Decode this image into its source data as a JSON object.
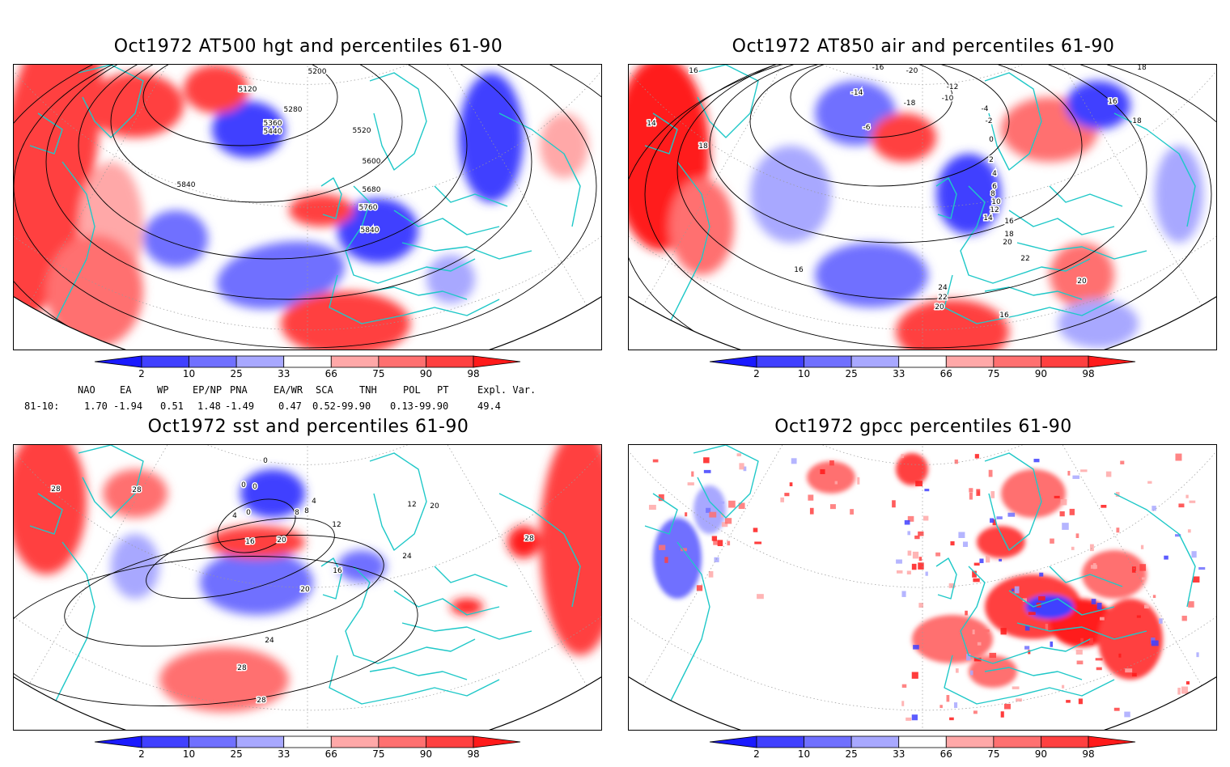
{
  "panels": [
    {
      "title": "Oct1972 AT500 hgt and percentiles 61-90",
      "contour_labels": [
        "5200",
        "5120",
        "5280",
        "5360",
        "5440",
        "5520",
        "5600",
        "5680",
        "5760",
        "5840",
        "5840"
      ]
    },
    {
      "title": "Oct1972 AT850 air and percentiles 61-90",
      "contour_labels": [
        "16",
        "14",
        "18",
        "-16",
        "-14",
        "-20",
        "-18",
        "-12",
        "-10",
        "-6",
        "-4",
        "-2",
        "0",
        "2",
        "4",
        "6",
        "8",
        "10",
        "12",
        "14",
        "16",
        "18",
        "20",
        "22",
        "24",
        "22",
        "20",
        "18",
        "16",
        "18",
        "20",
        "16",
        "16"
      ]
    },
    {
      "title": "Oct1972 sst and percentiles 61-90",
      "contour_labels": [
        "28",
        "28",
        "0",
        "0",
        "0",
        "0",
        "4",
        "4",
        "8",
        "8",
        "12",
        "16",
        "20",
        "20",
        "16",
        "24",
        "12",
        "20",
        "28",
        "24",
        "28",
        "28"
      ]
    },
    {
      "title": "Oct1972 gpcc percentiles 61-90",
      "contour_labels": []
    }
  ],
  "colorbar": {
    "tick_labels": [
      "2",
      "10",
      "25",
      "33",
      "66",
      "75",
      "90",
      "98"
    ],
    "colors": [
      "#1a1aff",
      "#4040ff",
      "#7070ff",
      "#a8a8ff",
      "#ffffff",
      "#ffa8a8",
      "#ff7070",
      "#ff4040",
      "#ff1a1a"
    ]
  },
  "indices": {
    "headers": [
      "NAO",
      "EA",
      "WP",
      "EP/NP",
      "PNA",
      "EA/WR",
      "SCA",
      "TNH",
      "POL",
      "PT",
      "Expl. Var."
    ],
    "row_label": "81-10:",
    "values": [
      "1.70",
      "-1.94",
      "0.51",
      "1.48",
      "-1.49",
      "0.47",
      "0.52-99.90",
      "",
      "0.13-99.90",
      "",
      "49.4"
    ]
  },
  "colors": {
    "coastline": "#1fc8c8",
    "contour": "#000000"
  }
}
